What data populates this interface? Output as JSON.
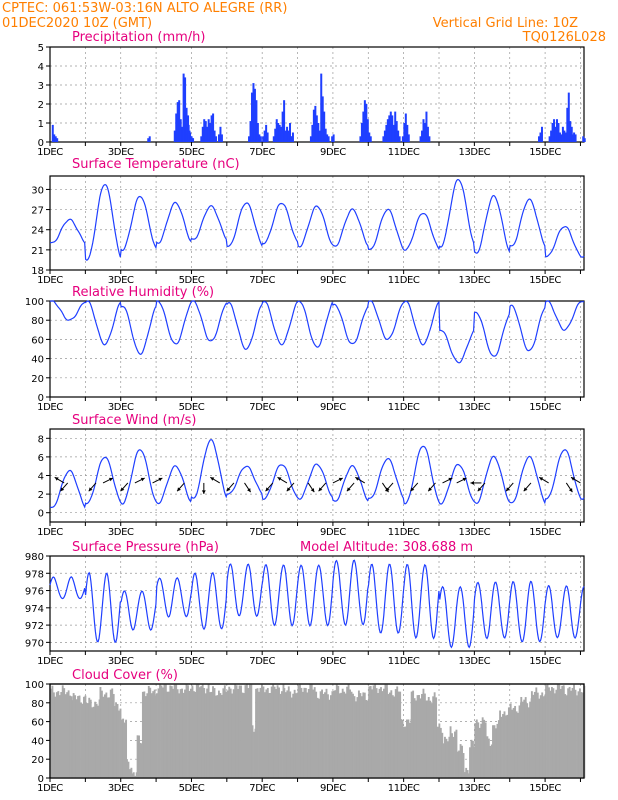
{
  "header": {
    "station_line": "CPTEC:   061:53W-03:16N   ALTO ALEGRE (RR)",
    "run_line": "01DEC2020 10Z (GMT)",
    "grid_note": "Vertical Grid Line: 10Z",
    "product_code": "TQ0126L028"
  },
  "colors": {
    "header": "#ff7f00",
    "panel_title": "#e6007e",
    "series": "#1f3fff",
    "cloud": "#a9a9a9"
  },
  "chart_data": [
    {
      "id": "precip",
      "type": "bar",
      "title": "Precipitation (mm/h)",
      "x_ticks": [
        "1DEC",
        "3DEC",
        "5DEC",
        "7DEC",
        "9DEC",
        "11DEC",
        "13DEC",
        "15DEC"
      ],
      "x_range_days": [
        0,
        15.1
      ],
      "ylim": [
        0,
        5
      ],
      "y_ticks": [
        0,
        1,
        2,
        3,
        4,
        5
      ],
      "bursts": [
        {
          "day": 0.05,
          "values": [
            0.9,
            0.4,
            0.3,
            0.2
          ]
        },
        {
          "day": 2.75,
          "values": [
            0.2,
            0.3
          ]
        },
        {
          "day": 3.5,
          "values": [
            0.6,
            1.5,
            2.1,
            2.2,
            1.2,
            0.8,
            3.6,
            3.4,
            1.8,
            1.4,
            0.6,
            0.3,
            0.2
          ]
        },
        {
          "day": 3.85,
          "values": [
            0.4,
            0.9,
            0.5,
            0.3,
            0.2
          ]
        },
        {
          "day": 4.25,
          "values": [
            0.3,
            0.8,
            1.2,
            1.1,
            0.8,
            1.2,
            1.0,
            1.4,
            1.5,
            0.6,
            0.3
          ]
        },
        {
          "day": 4.75,
          "values": [
            0.4,
            0.8,
            0.4
          ]
        },
        {
          "day": 5.6,
          "values": [
            0.3,
            1.1,
            2.6,
            3.1,
            2.8,
            2.2,
            1.0,
            0.4,
            0.3
          ]
        },
        {
          "day": 6.0,
          "values": [
            0.3,
            0.6,
            0.9,
            0.5
          ]
        },
        {
          "day": 6.3,
          "values": [
            0.3,
            0.7,
            1.2,
            1.0,
            0.9,
            0.8,
            1.6,
            2.2,
            0.6,
            0.8,
            0.6,
            1.0,
            0.3
          ]
        },
        {
          "day": 6.8,
          "values": [
            0.3,
            0.5
          ]
        },
        {
          "day": 7.35,
          "values": [
            0.3,
            0.9,
            1.7,
            1.9,
            1.4,
            1.0,
            0.6,
            3.6,
            2.4,
            1.6,
            0.7,
            0.4,
            0.3
          ]
        },
        {
          "day": 7.95,
          "values": [
            0.3,
            0.4
          ]
        },
        {
          "day": 8.75,
          "values": [
            0.3,
            1.0,
            1.6,
            2.2,
            2.0,
            1.2,
            0.5,
            0.3
          ]
        },
        {
          "day": 9.4,
          "values": [
            0.3,
            0.6,
            0.9,
            1.2,
            1.4,
            1.6,
            1.4,
            0.9,
            1.6,
            1.1,
            0.6,
            0.3
          ]
        },
        {
          "day": 9.95,
          "values": [
            0.3,
            1.0,
            1.5,
            0.9,
            0.4
          ]
        },
        {
          "day": 10.45,
          "values": [
            0.3,
            0.6,
            1.2,
            1.0,
            1.6,
            0.8,
            0.3
          ]
        },
        {
          "day": 13.8,
          "values": [
            0.3,
            0.5,
            0.8
          ]
        },
        {
          "day": 14.1,
          "values": [
            0.3,
            0.6,
            1.0,
            1.2,
            0.8,
            1.2,
            1.0,
            0.5,
            0.4,
            0.8,
            0.6,
            0.5,
            1.8,
            2.6,
            1.1,
            0.8,
            0.4
          ]
        },
        {
          "day": 14.75,
          "values": [
            0.3,
            0.5,
            0.4
          ]
        },
        {
          "day": 15.05,
          "values": [
            0.3,
            0.2
          ]
        }
      ]
    },
    {
      "id": "temp",
      "type": "line",
      "title": "Surface Temperature (nC)",
      "x_ticks": [
        "1DEC",
        "3DEC",
        "5DEC",
        "7DEC",
        "9DEC",
        "11DEC",
        "13DEC",
        "15DEC"
      ],
      "ylim": [
        18,
        32
      ],
      "y_ticks": [
        18,
        21,
        24,
        27,
        30
      ],
      "series_daily": {
        "min": [
          22.0,
          19.5,
          21.0,
          22.0,
          22.5,
          21.5,
          22.0,
          21.5,
          21.5,
          21.0,
          21.0,
          21.5,
          20.5,
          21.5,
          20.0
        ],
        "max": [
          25.5,
          30.8,
          29.0,
          28.0,
          27.5,
          28.0,
          28.0,
          27.5,
          27.0,
          27.0,
          26.5,
          31.5,
          29.0,
          28.5,
          24.5
        ]
      }
    },
    {
      "id": "rh",
      "type": "line",
      "title": "Relative Humidity (%)",
      "x_ticks": [
        "1DEC",
        "3DEC",
        "5DEC",
        "7DEC",
        "9DEC",
        "11DEC",
        "13DEC",
        "15DEC"
      ],
      "ylim": [
        0,
        100
      ],
      "y_ticks": [
        0,
        20,
        40,
        60,
        80,
        100
      ],
      "series_daily": {
        "min": [
          80,
          55,
          45,
          55,
          58,
          50,
          55,
          52,
          55,
          60,
          55,
          36,
          42,
          48,
          70
        ],
        "max": [
          100,
          100,
          95,
          100,
          100,
          98,
          100,
          100,
          96,
          100,
          100,
          70,
          88,
          95,
          100
        ]
      }
    },
    {
      "id": "wind",
      "type": "line",
      "title": "Surface Wind (m/s)",
      "x_ticks": [
        "1DEC",
        "3DEC",
        "5DEC",
        "7DEC",
        "9DEC",
        "11DEC",
        "13DEC",
        "15DEC"
      ],
      "ylim": [
        -1,
        9
      ],
      "y_ticks": [
        0,
        2,
        4,
        6,
        8
      ],
      "series_daily": {
        "min": [
          0.5,
          1.0,
          1.0,
          1.0,
          1.5,
          2.0,
          1.5,
          1.5,
          1.2,
          1.5,
          1.0,
          1.0,
          1.0,
          1.0,
          1.5
        ],
        "max": [
          4.5,
          6.0,
          6.8,
          5.0,
          7.8,
          5.0,
          5.2,
          5.2,
          5.0,
          5.8,
          7.2,
          5.2,
          6.0,
          6.0,
          6.8
        ]
      },
      "arrows": [
        {
          "day": 0.4,
          "dir": "up-left"
        },
        {
          "day": 0.5,
          "dir": "down-left"
        },
        {
          "day": 1.3,
          "dir": "down-left"
        },
        {
          "day": 1.5,
          "dir": "up-right"
        },
        {
          "day": 2.2,
          "dir": "down-left"
        },
        {
          "day": 2.4,
          "dir": "up-right"
        },
        {
          "day": 2.9,
          "dir": "up-right"
        },
        {
          "day": 3.8,
          "dir": "down-left"
        },
        {
          "day": 4.35,
          "dir": "down"
        },
        {
          "day": 4.8,
          "dir": "up-left"
        },
        {
          "day": 5.2,
          "dir": "down-left"
        },
        {
          "day": 5.5,
          "dir": "down-right"
        },
        {
          "day": 6.3,
          "dir": "down-left"
        },
        {
          "day": 6.7,
          "dir": "up-left"
        },
        {
          "day": 6.9,
          "dir": "down-left"
        },
        {
          "day": 7.3,
          "dir": "down-right"
        },
        {
          "day": 7.8,
          "dir": "down-left"
        },
        {
          "day": 8.0,
          "dir": "up-right"
        },
        {
          "day": 8.6,
          "dir": "down-left"
        },
        {
          "day": 8.9,
          "dir": "up-left"
        },
        {
          "day": 9.4,
          "dir": "down-right"
        },
        {
          "day": 9.7,
          "dir": "down-left"
        },
        {
          "day": 10.4,
          "dir": "down-left"
        },
        {
          "day": 10.9,
          "dir": "down-left"
        },
        {
          "day": 11.1,
          "dir": "up-right"
        },
        {
          "day": 11.5,
          "dir": "up-right"
        },
        {
          "day": 12.2,
          "dir": "left"
        },
        {
          "day": 12.3,
          "dir": "down-left"
        },
        {
          "day": 13.1,
          "dir": "down-left"
        },
        {
          "day": 13.6,
          "dir": "down-left"
        },
        {
          "day": 14.1,
          "dir": "up-left"
        },
        {
          "day": 14.6,
          "dir": "down-right"
        },
        {
          "day": 15.0,
          "dir": "up-left"
        }
      ]
    },
    {
      "id": "pres",
      "type": "line",
      "title": "Surface Pressure (hPa)",
      "annotation": "Model Altitude: 308.688 m",
      "x_ticks": [
        "1DEC",
        "3DEC",
        "5DEC",
        "7DEC",
        "9DEC",
        "11DEC",
        "13DEC",
        "15DEC"
      ],
      "ylim": [
        969,
        980
      ],
      "y_ticks": [
        970,
        972,
        974,
        976,
        978,
        980
      ],
      "series_daily": {
        "min": [
          975.0,
          970.0,
          971.5,
          973.0,
          971.5,
          973.0,
          972.0,
          972.0,
          972.0,
          971.0,
          970.5,
          969.5,
          970.5,
          970.0,
          970.5
        ],
        "max": [
          977.5,
          978.0,
          976.0,
          977.5,
          978.0,
          979.0,
          979.0,
          979.0,
          979.5,
          979.0,
          979.0,
          976.5,
          977.0,
          977.0,
          976.5
        ]
      }
    },
    {
      "id": "cloud",
      "type": "area",
      "title": "Cloud Cover (%)",
      "x_ticks": [
        "1DEC",
        "3DEC",
        "5DEC",
        "7DEC",
        "9DEC",
        "11DEC",
        "13DEC",
        "15DEC"
      ],
      "ylim": [
        0,
        100
      ],
      "y_ticks": [
        0,
        20,
        40,
        60,
        80,
        100
      ],
      "segments": [
        {
          "day": 0.0,
          "value": 92
        },
        {
          "day": 0.6,
          "value": 85
        },
        {
          "day": 1.0,
          "value": 80
        },
        {
          "day": 1.4,
          "value": 90
        },
        {
          "day": 1.8,
          "value": 78
        },
        {
          "day": 2.0,
          "value": 60
        },
        {
          "day": 2.15,
          "value": 15
        },
        {
          "day": 2.3,
          "value": 5
        },
        {
          "day": 2.45,
          "value": 40
        },
        {
          "day": 2.6,
          "value": 92
        },
        {
          "day": 3.0,
          "value": 97
        },
        {
          "day": 3.5,
          "value": 95
        },
        {
          "day": 4.0,
          "value": 97
        },
        {
          "day": 4.5,
          "value": 92
        },
        {
          "day": 5.0,
          "value": 96
        },
        {
          "day": 5.5,
          "value": 97
        },
        {
          "day": 5.7,
          "value": 55
        },
        {
          "day": 5.8,
          "value": 95
        },
        {
          "day": 6.2,
          "value": 96
        },
        {
          "day": 6.6,
          "value": 92
        },
        {
          "day": 7.0,
          "value": 96
        },
        {
          "day": 7.5,
          "value": 90
        },
        {
          "day": 8.0,
          "value": 94
        },
        {
          "day": 8.5,
          "value": 88
        },
        {
          "day": 9.0,
          "value": 96
        },
        {
          "day": 9.5,
          "value": 92
        },
        {
          "day": 9.9,
          "value": 60
        },
        {
          "day": 10.2,
          "value": 88
        },
        {
          "day": 10.6,
          "value": 85
        },
        {
          "day": 10.9,
          "value": 55
        },
        {
          "day": 11.1,
          "value": 40
        },
        {
          "day": 11.3,
          "value": 50
        },
        {
          "day": 11.5,
          "value": 30
        },
        {
          "day": 11.7,
          "value": 10
        },
        {
          "day": 11.85,
          "value": 35
        },
        {
          "day": 12.0,
          "value": 60
        },
        {
          "day": 12.3,
          "value": 40
        },
        {
          "day": 12.5,
          "value": 55
        },
        {
          "day": 12.7,
          "value": 70
        },
        {
          "day": 13.0,
          "value": 75
        },
        {
          "day": 13.3,
          "value": 82
        },
        {
          "day": 13.6,
          "value": 90
        },
        {
          "day": 14.0,
          "value": 96
        },
        {
          "day": 14.5,
          "value": 94
        },
        {
          "day": 15.0,
          "value": 92
        }
      ]
    }
  ]
}
